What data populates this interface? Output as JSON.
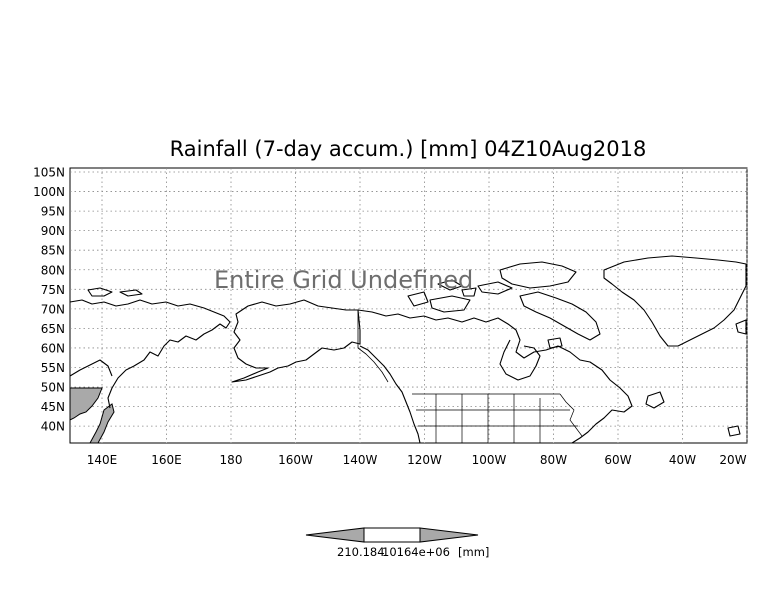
{
  "title": "Rainfall (7-day accum.) [mm] 04Z10Aug2018",
  "overlay_message": "Entire Grid Undefined",
  "map": {
    "lon_range": [
      130,
      -20
    ],
    "lat_range": [
      36,
      105
    ],
    "lat_ticks": [
      "105N",
      "100N",
      "95N",
      "90N",
      "85N",
      "80N",
      "75N",
      "70N",
      "65N",
      "60N",
      "55N",
      "50N",
      "45N",
      "40N"
    ],
    "lon_ticks": [
      "140E",
      "160E",
      "180",
      "160W",
      "140W",
      "120W",
      "100W",
      "80W",
      "60W",
      "40W",
      "20W"
    ],
    "grid": "dotted",
    "land_outline_color": "#000000",
    "shaded_region_color": "#a9a9a9"
  },
  "colorbar": {
    "fill_color": "#a9a9a9",
    "labels": [
      "210.184",
      "10164e+06",
      "[mm]"
    ]
  }
}
